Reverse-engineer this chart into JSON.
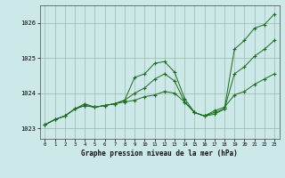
{
  "title": "Graphe pression niveau de la mer (hPa)",
  "bg_color": "#cce8e8",
  "grid_color": "#99bbaa",
  "line_color": "#1a6b1a",
  "xlim": [
    -0.5,
    23.5
  ],
  "ylim": [
    1022.7,
    1026.5
  ],
  "yticks": [
    1023,
    1024,
    1025,
    1026
  ],
  "xticks": [
    0,
    1,
    2,
    3,
    4,
    5,
    6,
    7,
    8,
    9,
    10,
    11,
    12,
    13,
    14,
    15,
    16,
    17,
    18,
    19,
    20,
    21,
    22,
    23
  ],
  "series": [
    [
      1023.1,
      1023.25,
      1023.35,
      1023.55,
      1023.7,
      1023.6,
      1023.65,
      1023.7,
      1023.8,
      1024.45,
      1024.55,
      1024.85,
      1024.9,
      1024.6,
      1023.85,
      1023.45,
      1023.35,
      1023.4,
      1023.55,
      1025.25,
      1025.5,
      1025.85,
      1025.95,
      1026.25
    ],
    [
      1023.1,
      1023.25,
      1023.35,
      1023.55,
      1023.65,
      1023.6,
      1023.65,
      1023.7,
      1023.8,
      1024.0,
      1024.15,
      1024.4,
      1024.55,
      1024.35,
      1023.75,
      1023.45,
      1023.35,
      1023.45,
      1023.55,
      1024.55,
      1024.75,
      1025.05,
      1025.25,
      1025.5
    ],
    [
      1023.1,
      1023.25,
      1023.35,
      1023.55,
      1023.65,
      1023.6,
      1023.65,
      1023.7,
      1023.75,
      1023.8,
      1023.9,
      1023.95,
      1024.05,
      1024.0,
      1023.75,
      1023.45,
      1023.35,
      1023.5,
      1023.6,
      1023.95,
      1024.05,
      1024.25,
      1024.4,
      1024.55
    ]
  ]
}
